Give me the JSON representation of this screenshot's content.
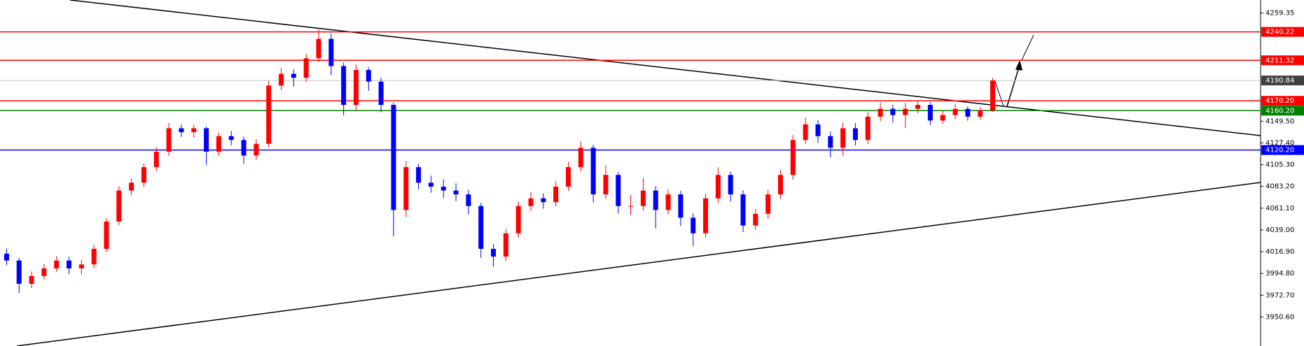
{
  "chart_data": {
    "type": "candlestick",
    "up_color": "#ff0000",
    "down_color": "#0000ff",
    "ylim": [
      3921.1,
      4272.6
    ],
    "yticks": [
      {
        "value": 3950.6,
        "label": "3950.60"
      },
      {
        "value": 3972.7,
        "label": "3972.70"
      },
      {
        "value": 3994.8,
        "label": "3994.80"
      },
      {
        "value": 4016.9,
        "label": "4016.90"
      },
      {
        "value": 4039.0,
        "label": "4039.00"
      },
      {
        "value": 4061.1,
        "label": "4061.10"
      },
      {
        "value": 4083.2,
        "label": "4083.20"
      },
      {
        "value": 4105.3,
        "label": "4105.30"
      },
      {
        "value": 4127.4,
        "label": "4127.40"
      },
      {
        "value": 4149.5,
        "label": "4149.50"
      },
      {
        "value": 4259.35,
        "label": "4259.35"
      }
    ],
    "price_levels": [
      {
        "value": 4240.22,
        "label": "4240.22",
        "color": "#ff0000"
      },
      {
        "value": 4211.32,
        "label": "4211.32",
        "color": "#ff0000"
      },
      {
        "value": 4190.84,
        "label": "4190.84",
        "color": "#c0c0c0"
      },
      {
        "value": 4170.2,
        "label": "4170.20",
        "color": "#ff0000"
      },
      {
        "value": 4160.2,
        "label": "4160.20",
        "color": "#008000"
      },
      {
        "value": 4120.2,
        "label": "4120.20",
        "color": "#0000ff"
      }
    ],
    "open": [
      4015.0,
      4007.9,
      3984.3,
      3992.2,
      4000.0,
      4007.9,
      4000.0,
      4004.0,
      4019.8,
      4047.5,
      4079.0,
      4087.0,
      4102.8,
      4118.5,
      4142.3,
      4138.3,
      4142.3,
      4118.5,
      4134.3,
      4130.4,
      4114.6,
      4126.5,
      4185.7,
      4197.6,
      4193.6,
      4213.4,
      4233.1,
      4205.5,
      4166.0,
      4201.5,
      4189.7,
      4166.0,
      4059.3,
      4102.8,
      4087.0,
      4083.0,
      4079.0,
      4075.1,
      4063.3,
      4019.8,
      4011.9,
      4035.6,
      4063.3,
      4071.1,
      4067.2,
      4083.0,
      4102.8,
      4122.5,
      4075.1,
      4094.9,
      4063.3,
      4063.3,
      4079.0,
      4059.3,
      4075.1,
      4051.4,
      4035.6,
      4071.1,
      4094.9,
      4075.1,
      4043.5,
      4055.4,
      4075.1,
      4094.9,
      4130.4,
      4146.2,
      4134.3,
      4122.5,
      4142.3,
      4130.4,
      4154.1,
      4162.0,
      4155.7,
      4162.0,
      4166.0,
      4150.2,
      4155.7,
      4162.0,
      4154.1,
      4160.4
    ],
    "high": [
      4020.1,
      4010.5,
      3996.8,
      4004.6,
      4012.3,
      4011.8,
      4008.5,
      4023.7,
      4051.2,
      4083.6,
      4091.3,
      4106.5,
      4123.0,
      4147.6,
      4146.1,
      4145.8,
      4144.0,
      4138.2,
      4139.5,
      4133.8,
      4131.2,
      4190.3,
      4203.4,
      4202.1,
      4218.0,
      4242.6,
      4238.7,
      4209.2,
      4206.9,
      4204.3,
      4193.8,
      4168.4,
      4108.6,
      4106.3,
      4094.2,
      4090.5,
      4086.3,
      4079.8,
      4066.5,
      4024.7,
      4040.2,
      4068.4,
      4077.6,
      4076.3,
      4088.4,
      4108.1,
      4129.0,
      4125.4,
      4104.3,
      4098.2,
      4074.6,
      4091.7,
      4083.5,
      4080.2,
      4078.9,
      4055.8,
      4075.9,
      4102.7,
      4098.4,
      4079.2,
      4060.1,
      4079.6,
      4099.8,
      4135.6,
      4152.8,
      4150.4,
      4138.9,
      4148.0,
      4147.5,
      4158.7,
      4168.3,
      4166.2,
      4167.9,
      4170.4,
      4168.8,
      4160.3,
      4166.9,
      4164.5,
      4163.8,
      4193.5
    ],
    "low": [
      4003.2,
      3975.0,
      3980.1,
      3988.7,
      3996.4,
      3994.2,
      3993.6,
      4000.2,
      4016.4,
      4043.9,
      4074.2,
      4082.7,
      4098.9,
      4114.2,
      4133.5,
      4132.9,
      4104.8,
      4114.7,
      4125.1,
      4106.3,
      4110.4,
      4122.8,
      4181.2,
      4184.7,
      4189.5,
      4209.8,
      4196.3,
      4155.4,
      4160.7,
      4180.2,
      4158.6,
      4032.5,
      4052.1,
      4080.4,
      4076.8,
      4071.6,
      4068.2,
      4055.0,
      4010.6,
      4001.5,
      4007.3,
      4031.0,
      4058.2,
      4060.5,
      4062.9,
      4078.6,
      4098.3,
      4066.7,
      4070.5,
      4055.8,
      4054.1,
      4058.9,
      4040.6,
      4054.7,
      4043.0,
      4022.7,
      4031.4,
      4066.3,
      4067.9,
      4036.8,
      4039.2,
      4050.3,
      4070.7,
      4090.2,
      4126.1,
      4127.5,
      4112.6,
      4114.3,
      4124.8,
      4126.0,
      4149.6,
      4148.1,
      4142.4,
      4157.3,
      4145.6,
      4146.5,
      4151.4,
      4150.0,
      4151.2,
      4158.9
    ],
    "close": [
      4007.9,
      3984.3,
      3992.2,
      4000.0,
      4007.9,
      4000.0,
      4004.0,
      4019.8,
      4047.5,
      4079.0,
      4087.0,
      4102.8,
      4118.5,
      4142.3,
      4138.3,
      4142.3,
      4118.5,
      4134.3,
      4130.4,
      4114.6,
      4126.5,
      4185.7,
      4197.6,
      4193.6,
      4213.4,
      4233.1,
      4205.5,
      4166.0,
      4201.5,
      4189.7,
      4166.0,
      4059.3,
      4102.8,
      4087.0,
      4083.0,
      4079.0,
      4075.1,
      4063.3,
      4019.8,
      4011.9,
      4035.6,
      4063.3,
      4071.1,
      4067.2,
      4083.0,
      4102.8,
      4122.5,
      4075.1,
      4094.9,
      4063.3,
      4063.3,
      4079.0,
      4059.3,
      4075.1,
      4051.4,
      4035.6,
      4071.1,
      4094.9,
      4075.1,
      4043.5,
      4055.4,
      4075.1,
      4094.9,
      4130.4,
      4146.2,
      4134.3,
      4122.5,
      4142.3,
      4130.4,
      4154.1,
      4162.0,
      4155.7,
      4162.0,
      4166.0,
      4150.2,
      4155.7,
      4162.0,
      4154.1,
      4160.4,
      4190.84
    ]
  }
}
